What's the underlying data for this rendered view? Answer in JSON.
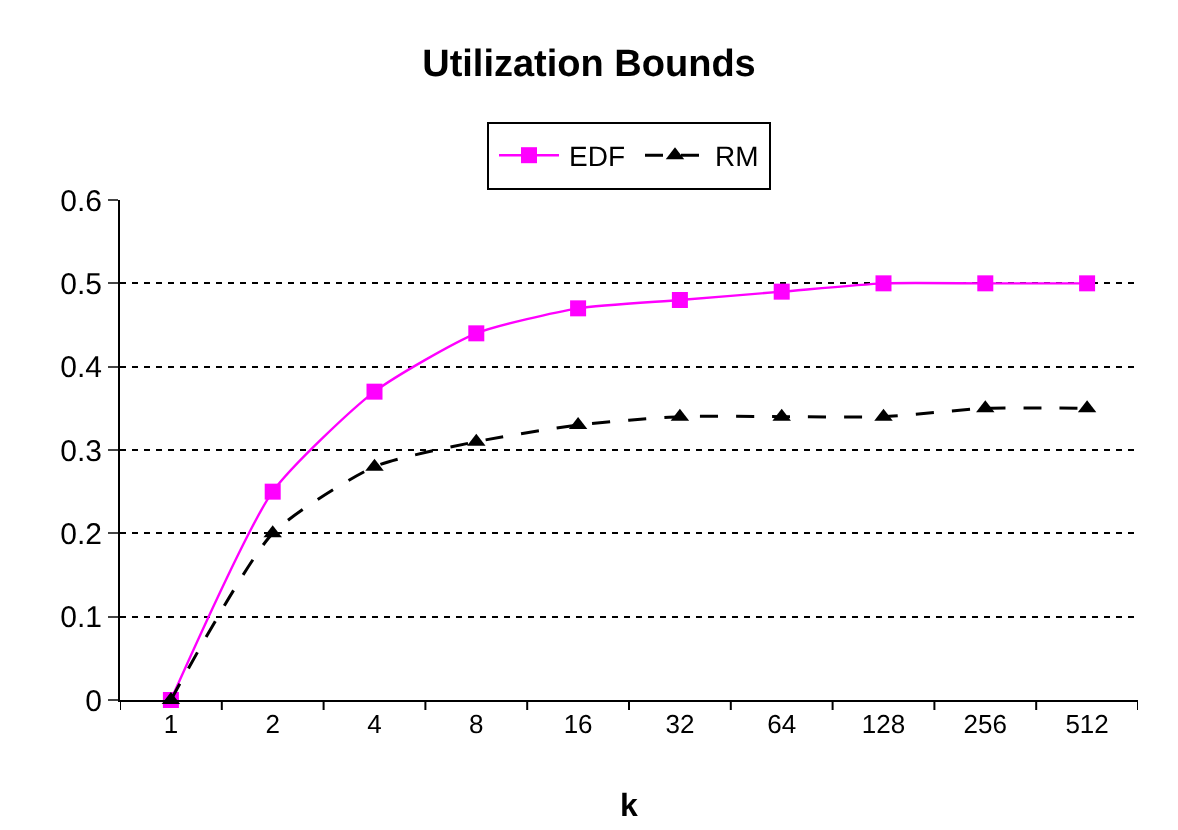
{
  "chart_data": {
    "type": "line",
    "title": "Utilization Bounds",
    "xlabel": "k",
    "categories": [
      "1",
      "2",
      "4",
      "8",
      "16",
      "32",
      "64",
      "128",
      "256",
      "512"
    ],
    "series": [
      {
        "name": "EDF",
        "color": "#ff00ff",
        "marker": "square",
        "line_style": "solid",
        "values": [
          0,
          0.25,
          0.37,
          0.44,
          0.47,
          0.48,
          0.49,
          0.5,
          0.5,
          0.5
        ]
      },
      {
        "name": "RM",
        "color": "#000000",
        "marker": "triangle",
        "line_style": "dashed",
        "values": [
          0,
          0.2,
          0.28,
          0.31,
          0.33,
          0.34,
          0.34,
          0.34,
          0.35,
          0.35
        ]
      }
    ],
    "ylim": [
      0,
      0.6
    ],
    "yticks": [
      0,
      0.1,
      0.2,
      0.3,
      0.4,
      0.5,
      0.6
    ],
    "grid": "y",
    "legend": "top"
  }
}
